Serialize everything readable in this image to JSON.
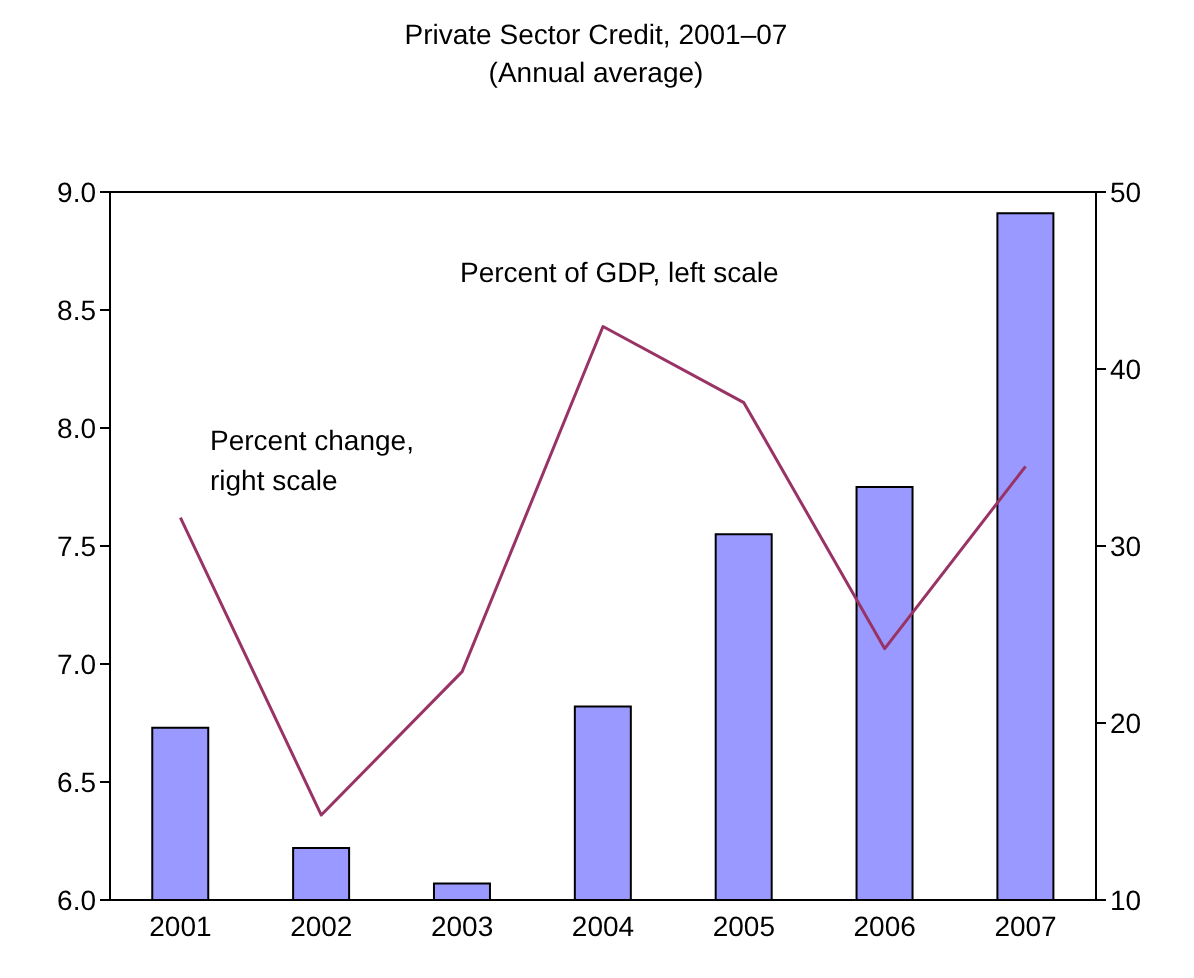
{
  "chart_data": {
    "type": "bar",
    "title": "Private Sector Credit, 2001–07",
    "subtitle": "(Annual average)",
    "categories": [
      "2001",
      "2002",
      "2003",
      "2004",
      "2005",
      "2006",
      "2007"
    ],
    "series": [
      {
        "color": "#9999ff",
        "values": [
          6.73,
          6.22,
          6.07,
          6.82,
          7.55,
          7.75,
          8.91
        ]
      },
      {
        "type": "line",
        "axis": "y2",
        "color": "#993366",
        "values": [
          31.6,
          14.8,
          22.9,
          42.4,
          38.1,
          24.2,
          34.5
        ]
      }
    ],
    "ylim": [
      6.0,
      9.0
    ],
    "yticks": [
      {
        "value": 6,
        "label": "6.0"
      },
      {
        "value": 6.5,
        "label": "6.5"
      },
      {
        "value": 7,
        "label": "7.0"
      },
      {
        "value": 7.5,
        "label": "7.5"
      },
      {
        "value": 8,
        "label": "8.0"
      },
      {
        "value": 8.5,
        "label": "8.5"
      },
      {
        "value": 9,
        "label": "9.0"
      }
    ],
    "y2lim": [
      10,
      50
    ],
    "y2ticks": [
      10,
      20,
      30,
      40,
      50
    ],
    "annotations": [
      "Percent of GDP, left scale",
      "Percent change, right scale"
    ],
    "marker": "none",
    "line_style": "solid"
  }
}
